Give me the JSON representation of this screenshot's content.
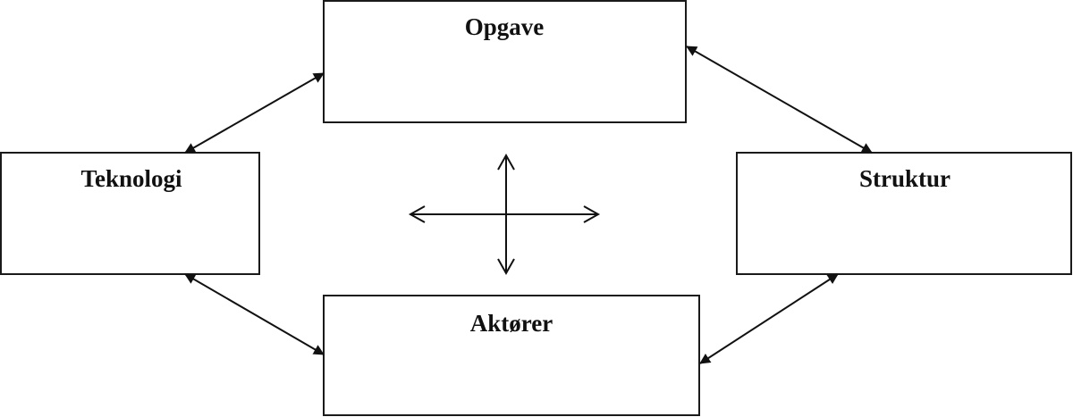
{
  "diagram": {
    "nodes": {
      "opgave": {
        "label": "Opgave"
      },
      "teknologi": {
        "label": "Teknologi"
      },
      "struktur": {
        "label": "Struktur"
      },
      "aktorer": {
        "label": "Aktører"
      }
    },
    "connections": [
      {
        "from": "teknologi",
        "to": "opgave",
        "type": "bidirectional"
      },
      {
        "from": "opgave",
        "to": "struktur",
        "type": "bidirectional"
      },
      {
        "from": "teknologi",
        "to": "aktorer",
        "type": "bidirectional"
      },
      {
        "from": "aktorer",
        "to": "struktur",
        "type": "bidirectional"
      }
    ],
    "center_symbol": "four-way-arrow"
  }
}
